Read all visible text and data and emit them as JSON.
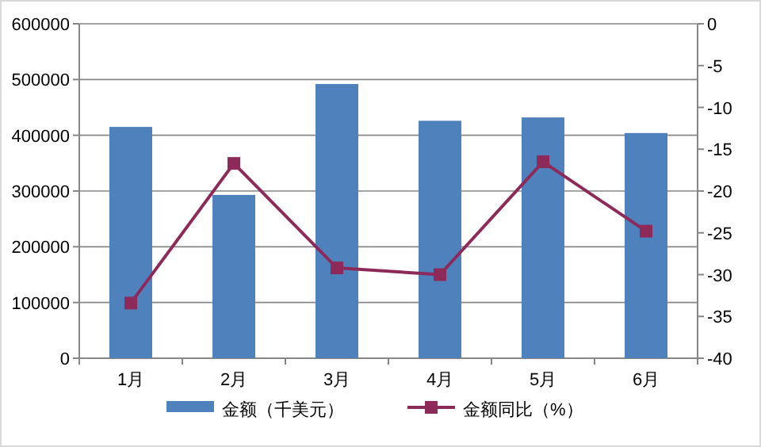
{
  "chart_data": {
    "type": "bar",
    "categories": [
      "1月",
      "2月",
      "3月",
      "4月",
      "5月",
      "6月"
    ],
    "series": [
      {
        "name": "金额（千美元）",
        "color": "#4f81bd",
        "values": [
          415000,
          293000,
          492000,
          426000,
          432000,
          404000
        ]
      },
      {
        "name": "金额同比（%）",
        "type": "line",
        "axis": "y2",
        "color": "#8e2a5a",
        "values": [
          -33.4,
          -16.7,
          -29.2,
          -30,
          -16.5,
          -24.8
        ]
      }
    ],
    "ylim": [
      0,
      600000
    ],
    "yticks": [
      0,
      100000,
      200000,
      300000,
      400000,
      500000,
      600000
    ],
    "y2lim": [
      -40,
      0
    ],
    "y2ticks": [
      -40,
      -35,
      -30,
      -25,
      -20,
      -15,
      -10,
      -5,
      0
    ],
    "grid": "y",
    "legend": "bottom",
    "marker": "square"
  }
}
